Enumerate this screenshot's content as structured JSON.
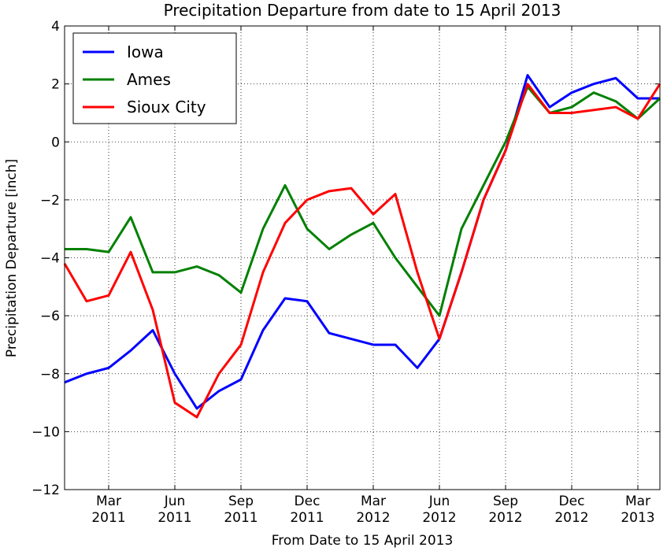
{
  "chart_data": {
    "type": "line",
    "title": "Precipitation Departure from date to 15 April 2013",
    "x_label": "From Date to 15 April 2013",
    "y_label": "Precipitation Departure [inch]",
    "x": [
      "2011-01",
      "2011-02",
      "2011-03",
      "2011-04",
      "2011-05",
      "2011-06",
      "2011-07",
      "2011-08",
      "2011-09",
      "2011-10",
      "2011-11",
      "2011-12",
      "2012-01",
      "2012-02",
      "2012-03",
      "2012-04",
      "2012-05",
      "2012-06",
      "2012-07",
      "2012-08",
      "2012-09",
      "2012-10",
      "2012-11",
      "2012-12",
      "2013-01",
      "2013-02",
      "2013-03",
      "2013-04"
    ],
    "series": [
      {
        "name": "Iowa",
        "color": "#0000ff",
        "values": [
          -8.3,
          -8.0,
          -7.8,
          -7.2,
          -6.5,
          -8.0,
          -9.2,
          -8.6,
          -8.2,
          -6.5,
          -5.4,
          -5.5,
          -6.6,
          -6.8,
          -7.0,
          -7.0,
          -7.8,
          -6.8,
          -4.5,
          -2.0,
          -0.3,
          2.3,
          1.2,
          1.7,
          2.0,
          2.2,
          1.5,
          1.5
        ]
      },
      {
        "name": "Ames",
        "color": "#008000",
        "values": [
          -3.7,
          -3.7,
          -3.8,
          -2.6,
          -4.5,
          -4.5,
          -4.3,
          -4.6,
          -5.2,
          -3.0,
          -1.5,
          -3.0,
          -3.7,
          -3.2,
          -2.8,
          -4.0,
          -5.0,
          -6.0,
          -3.0,
          -1.5,
          0.0,
          1.9,
          1.0,
          1.2,
          1.7,
          1.4,
          0.8,
          1.5
        ]
      },
      {
        "name": "Sioux City",
        "color": "#ff0000",
        "values": [
          -4.2,
          -5.5,
          -5.3,
          -3.8,
          -5.8,
          -9.0,
          -9.5,
          -8.0,
          -7.0,
          -4.5,
          -2.8,
          -2.0,
          -1.7,
          -1.6,
          -2.5,
          -1.8,
          -4.5,
          -6.8,
          -4.5,
          -2.0,
          -0.3,
          2.0,
          1.0,
          1.0,
          1.1,
          1.2,
          0.8,
          2.0
        ]
      }
    ],
    "xlim": [
      "2011-01",
      "2013-04"
    ],
    "xticks": [
      {
        "value": "2011-03",
        "label": "Mar 2011"
      },
      {
        "value": "2011-06",
        "label": "Jun 2011"
      },
      {
        "value": "2011-09",
        "label": "Sep 2011"
      },
      {
        "value": "2011-12",
        "label": "Dec 2011"
      },
      {
        "value": "2012-03",
        "label": "Mar 2012"
      },
      {
        "value": "2012-06",
        "label": "Jun 2012"
      },
      {
        "value": "2012-09",
        "label": "Sep 2012"
      },
      {
        "value": "2012-12",
        "label": "Dec 2012"
      },
      {
        "value": "2013-03",
        "label": "Mar 2013"
      }
    ],
    "ylim": [
      -12,
      4
    ],
    "yticks": [
      {
        "value": -12,
        "label": "−12"
      },
      {
        "value": -10,
        "label": "−10"
      },
      {
        "value": -8,
        "label": "−8"
      },
      {
        "value": -6,
        "label": "−6"
      },
      {
        "value": -4,
        "label": "−4"
      },
      {
        "value": -2,
        "label": "−2"
      },
      0,
      2,
      4
    ],
    "grid": true,
    "legend": "upper left"
  }
}
